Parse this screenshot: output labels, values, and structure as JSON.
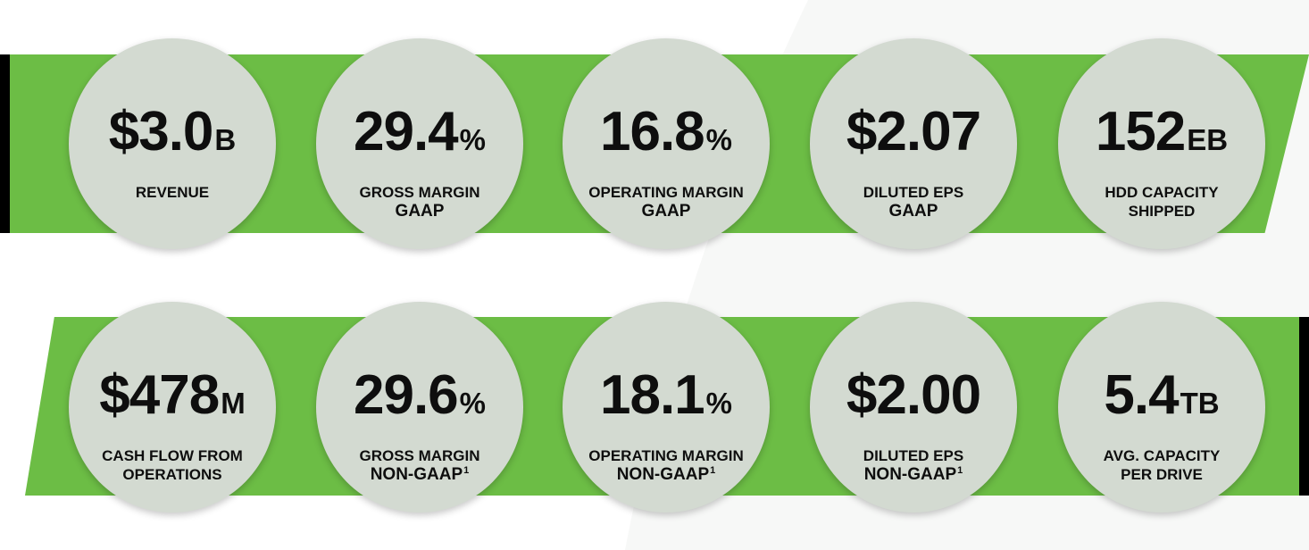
{
  "top_row": [
    {
      "value": "$3.0",
      "unit": "B",
      "line1": "REVENUE",
      "line2": "",
      "sup": ""
    },
    {
      "value": "29.4",
      "unit": "%",
      "line1": "GROSS MARGIN",
      "line2": "GAAP",
      "sup": ""
    },
    {
      "value": "16.8",
      "unit": "%",
      "line1": "OPERATING MARGIN",
      "line2": "GAAP",
      "sup": ""
    },
    {
      "value": "$2.07",
      "unit": "",
      "line1": "DILUTED EPS",
      "line2": "GAAP",
      "sup": ""
    },
    {
      "value": "152",
      "unit": "EB",
      "line1": "HDD CAPACITY",
      "line2": "SHIPPED",
      "sup": ""
    }
  ],
  "bottom_row": [
    {
      "value": "$478",
      "unit": "M",
      "line1": "CASH FLOW FROM",
      "line2": "OPERATIONS",
      "sup": ""
    },
    {
      "value": "29.6",
      "unit": "%",
      "line1": "GROSS MARGIN",
      "line2": "NON-GAAP",
      "sup": "1"
    },
    {
      "value": "18.1",
      "unit": "%",
      "line1": "OPERATING MARGIN",
      "line2": "NON-GAAP",
      "sup": "1"
    },
    {
      "value": "$2.00",
      "unit": "",
      "line1": "DILUTED EPS",
      "line2": "NON-GAAP",
      "sup": "1"
    },
    {
      "value": "5.4",
      "unit": "TB",
      "line1": "AVG. CAPACITY",
      "line2": "PER DRIVE",
      "sup": ""
    }
  ],
  "colors": {
    "band_green": "#6cbd45",
    "circle_fill": "#d3dad1",
    "edge_black": "#000000",
    "text": "#0e0e0e"
  }
}
